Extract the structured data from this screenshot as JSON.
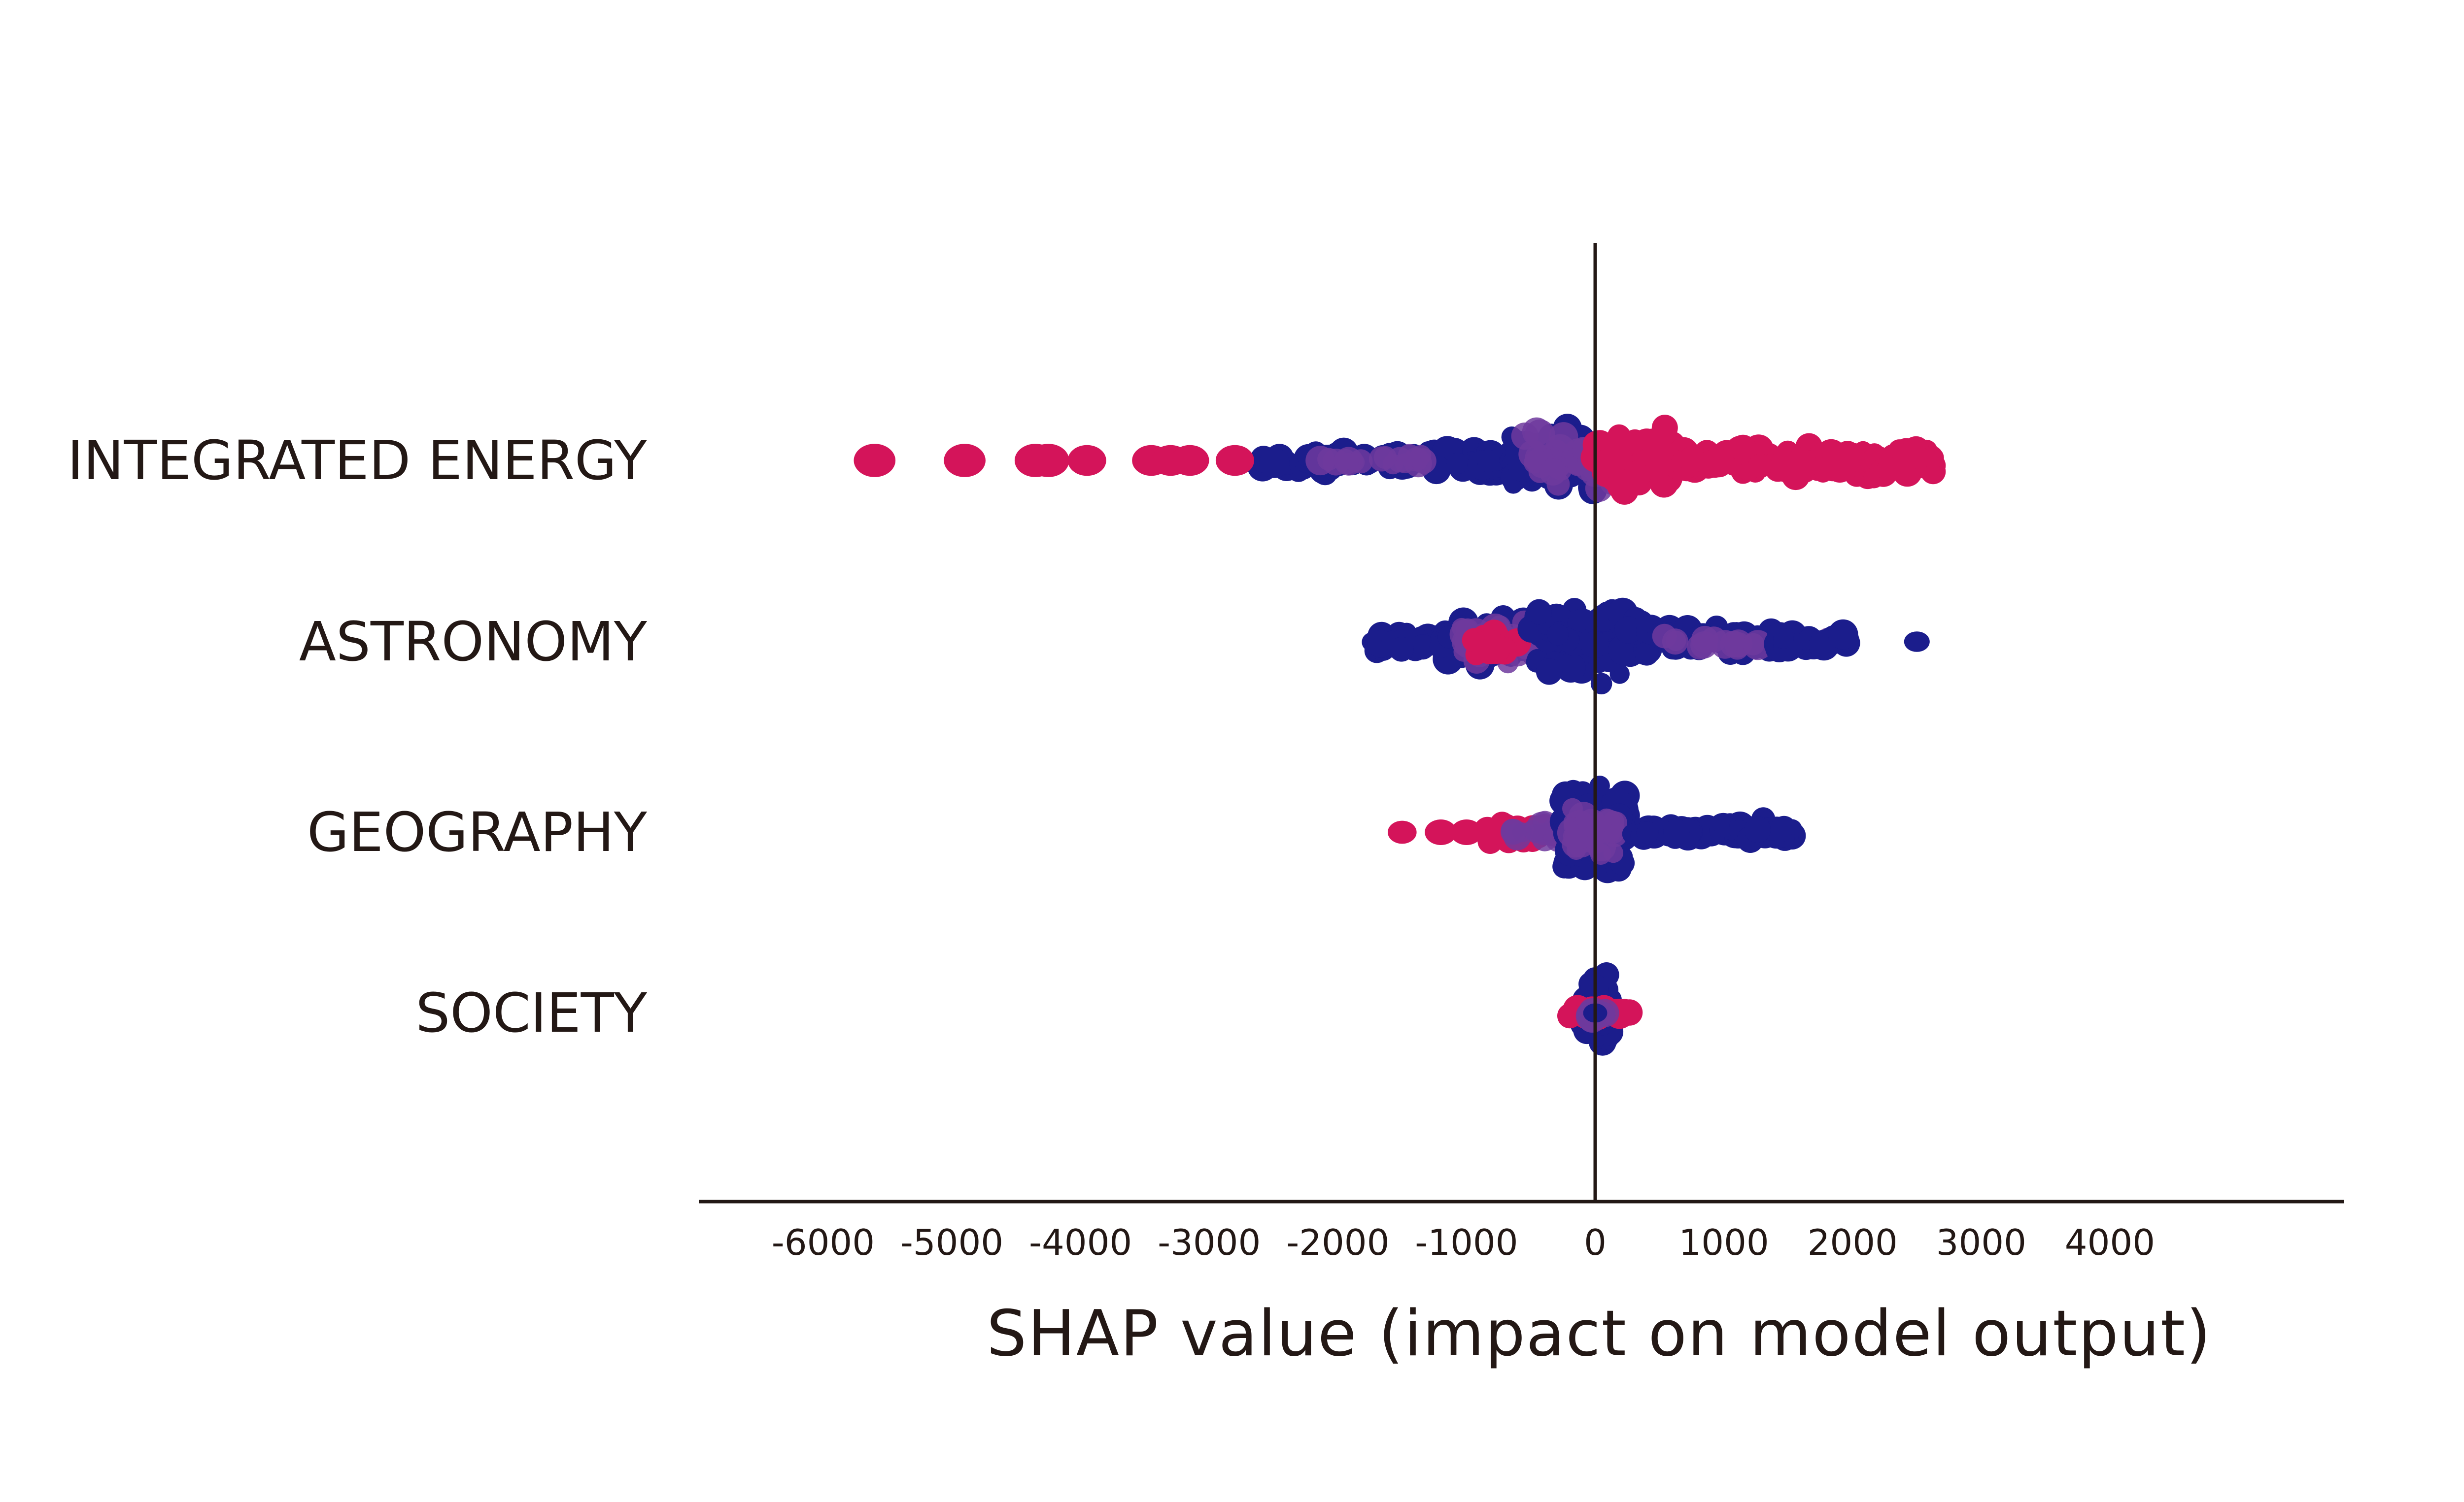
{
  "chart_data": {
    "type": "scatter",
    "subtype": "shap-beeswarm",
    "title": "",
    "xlabel": "SHAP value (impact on model output)",
    "ylabel": "",
    "xlim": [
      -7000,
      5800
    ],
    "xticks": [
      -6000,
      -5000,
      -4000,
      -3000,
      -2000,
      -1000,
      0,
      1000,
      2000,
      3000,
      4000
    ],
    "xtick_labels": [
      "-6000",
      "-5000",
      "-4000",
      "-3000",
      "-2000",
      "-1000",
      "0",
      "1000",
      "2000",
      "3000",
      "4000"
    ],
    "grid": false,
    "legend": "none",
    "colors": {
      "high": "#d4145a",
      "low": "#1b1d8c",
      "mid": "#6e3a9e",
      "axis": "#231815"
    },
    "features": [
      {
        "name": "INTEGRATED ENERGY",
        "points": [
          {
            "x": -5600,
            "c": "high",
            "r": 1.3
          },
          {
            "x": -4900,
            "c": "high",
            "r": 1.3
          },
          {
            "x": -4350,
            "c": "high",
            "r": 1.3
          },
          {
            "x": -4250,
            "c": "high",
            "r": 1.3
          },
          {
            "x": -3950,
            "c": "high",
            "r": 1.2
          },
          {
            "x": -3450,
            "c": "high",
            "r": 1.2
          },
          {
            "x": -3300,
            "c": "high",
            "r": 1.2
          },
          {
            "x": -3150,
            "c": "high",
            "r": 1.2
          },
          {
            "x": -2800,
            "c": "high",
            "r": 1.2
          }
        ],
        "clusters": [
          {
            "from": -2600,
            "to": -900,
            "spread": 0.35,
            "n": 70,
            "c": "low"
          },
          {
            "from": -2200,
            "to": -1300,
            "spread": 0.2,
            "n": 18,
            "c": "mid"
          },
          {
            "from": -900,
            "to": -300,
            "spread": 0.6,
            "n": 60,
            "c": "low"
          },
          {
            "from": -650,
            "to": 0,
            "spread": 1.0,
            "n": 70,
            "c": "low"
          },
          {
            "from": -550,
            "to": 150,
            "spread": 0.8,
            "n": 50,
            "c": "mid"
          },
          {
            "from": 0,
            "to": 600,
            "spread": 1.0,
            "n": 70,
            "c": "high"
          },
          {
            "from": 600,
            "to": 2100,
            "spread": 0.45,
            "n": 90,
            "c": "high"
          },
          {
            "from": 2100,
            "to": 2650,
            "spread": 0.55,
            "n": 40,
            "c": "high"
          }
        ]
      },
      {
        "name": "ASTRONOMY",
        "points": [
          {
            "x": 2500,
            "c": "low",
            "r": 0.8
          }
        ],
        "clusters": [
          {
            "from": -1750,
            "to": -1200,
            "spread": 0.4,
            "n": 30,
            "c": "low"
          },
          {
            "from": -1200,
            "to": -400,
            "spread": 0.75,
            "n": 60,
            "c": "low"
          },
          {
            "from": -1100,
            "to": -300,
            "spread": 0.6,
            "n": 40,
            "c": "mid"
          },
          {
            "from": -950,
            "to": -600,
            "spread": 0.5,
            "n": 14,
            "c": "high"
          },
          {
            "from": -500,
            "to": 400,
            "spread": 1.0,
            "n": 80,
            "c": "low"
          },
          {
            "from": 400,
            "to": 1400,
            "spread": 0.5,
            "n": 55,
            "c": "low"
          },
          {
            "from": 500,
            "to": 1900,
            "spread": 0.2,
            "n": 22,
            "c": "mid"
          },
          {
            "from": 1400,
            "to": 2000,
            "spread": 0.3,
            "n": 25,
            "c": "low"
          }
        ]
      },
      {
        "name": "GEOGRAPHY",
        "points": [
          {
            "x": -1500,
            "c": "high",
            "r": 0.9
          },
          {
            "x": -1200,
            "c": "high",
            "r": 1.0
          },
          {
            "x": -1000,
            "c": "high",
            "r": 1.0
          }
        ],
        "clusters": [
          {
            "from": -850,
            "to": -200,
            "spread": 0.3,
            "n": 40,
            "c": "high"
          },
          {
            "from": -650,
            "to": -150,
            "spread": 0.3,
            "n": 18,
            "c": "mid"
          },
          {
            "from": -250,
            "to": 250,
            "spread": 1.35,
            "n": 130,
            "c": "low"
          },
          {
            "from": -180,
            "to": 180,
            "spread": 0.7,
            "n": 30,
            "c": "mid"
          },
          {
            "from": 250,
            "to": 1550,
            "spread": 0.15,
            "n": 80,
            "c": "low"
          },
          {
            "from": 1000,
            "to": 1500,
            "spread": 0.3,
            "n": 22,
            "c": "low"
          }
        ]
      },
      {
        "name": "SOCIETY",
        "points": [
          {
            "x": 0,
            "c": "low",
            "r": 0.75
          }
        ],
        "clusters": [
          {
            "from": -80,
            "to": 120,
            "spread": 1.2,
            "n": 60,
            "c": "low"
          },
          {
            "from": -200,
            "to": 280,
            "spread": 0.15,
            "n": 30,
            "c": "high"
          },
          {
            "from": -60,
            "to": 80,
            "spread": 0.35,
            "n": 12,
            "c": "mid"
          }
        ]
      }
    ]
  }
}
